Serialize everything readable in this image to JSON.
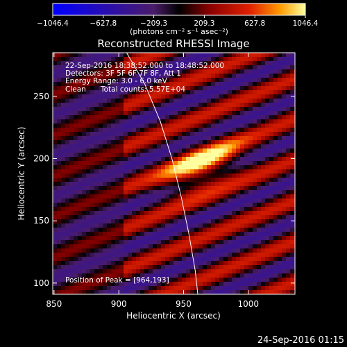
{
  "chart_data": {
    "type": "heatmap",
    "title": "Reconstructed RHESSI Image",
    "xlabel": "Heliocentric X (arcsec)",
    "ylabel": "Heliocentric Y (arcsec)",
    "xlim": [
      849,
      1036
    ],
    "ylim": [
      91,
      285
    ],
    "x_ticks": [
      850,
      900,
      950,
      1000
    ],
    "y_ticks": [
      100,
      150,
      200,
      250
    ],
    "colorbar": {
      "min": -1046.4,
      "max": 1046.4,
      "ticks": [
        "−1046.4",
        "−627.8",
        "−209.3",
        "209.3",
        "627.8",
        "1046.4"
      ],
      "unit_label": "(photons cm⁻² s⁻¹ asec⁻²)"
    },
    "annotations": {
      "time_range": "22-Sep-2016 18:38:52.000 to 18:48:52.000",
      "detectors": "Detectors: 3F 5F 6F 7F 8F, Att 1",
      "energy": "Energy Range: 3.0 - 6.0 keV",
      "method": "Clean",
      "counts": "Total counts: 5.57E+04",
      "peak": "Position of Peak = [964,193]"
    },
    "peak": {
      "x": 964,
      "y": 193,
      "value": 1046.4
    },
    "limb": [
      [
        906,
        285
      ],
      [
        920,
        260
      ],
      [
        932,
        230
      ],
      [
        941,
        200
      ],
      [
        948,
        170
      ],
      [
        954,
        140
      ],
      [
        959,
        110
      ],
      [
        961,
        91
      ]
    ],
    "footer": "24-Sep-2016 01:15"
  },
  "colors": {
    "background": "#000000",
    "text": "#ffffff",
    "limb": "#ffffff"
  }
}
